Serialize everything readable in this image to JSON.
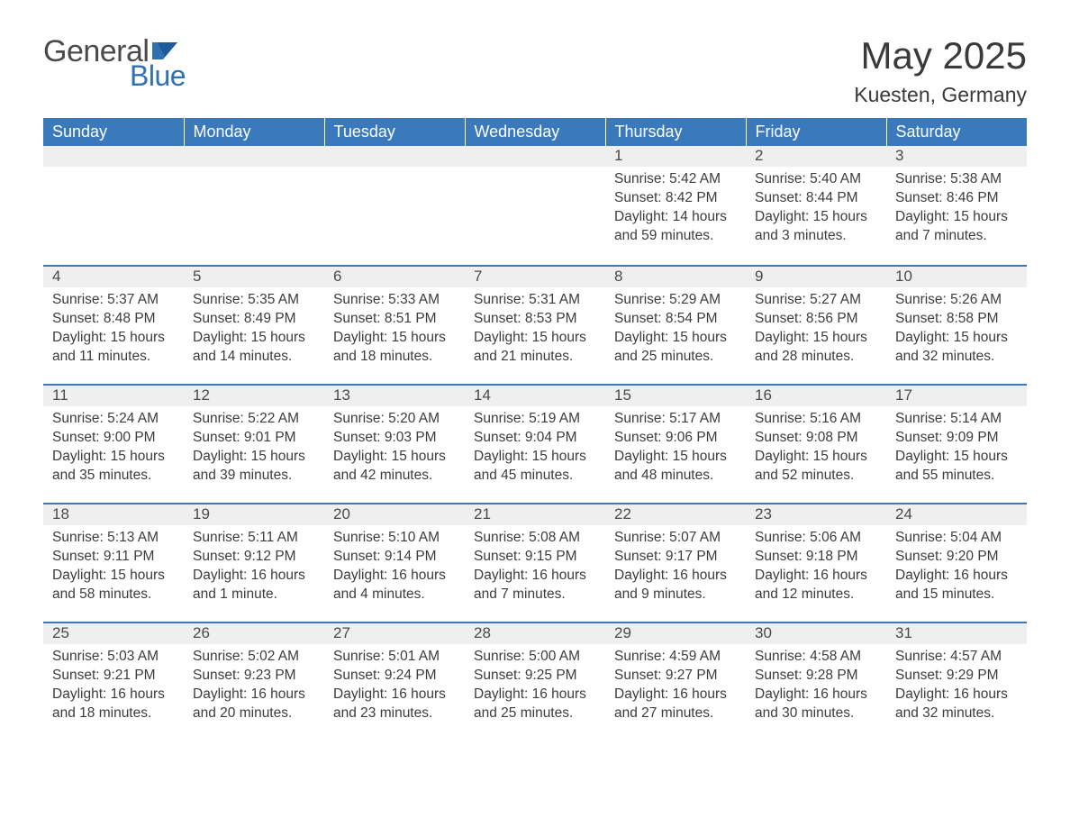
{
  "logo": {
    "general": "General",
    "blue": "Blue"
  },
  "title": "May 2025",
  "location": "Kuesten, Germany",
  "colors": {
    "header_bg": "#3a79bb",
    "header_text": "#ffffff",
    "numbar_bg": "#efefef",
    "rule": "#3a79bb",
    "body_text": "#3c3c3c",
    "logo_blue": "#2f6fb2",
    "page_bg": "#ffffff"
  },
  "day_headers": [
    "Sunday",
    "Monday",
    "Tuesday",
    "Wednesday",
    "Thursday",
    "Friday",
    "Saturday"
  ],
  "weeks": [
    [
      {
        "n": "",
        "sunrise": "",
        "sunset": "",
        "daylight": ""
      },
      {
        "n": "",
        "sunrise": "",
        "sunset": "",
        "daylight": ""
      },
      {
        "n": "",
        "sunrise": "",
        "sunset": "",
        "daylight": ""
      },
      {
        "n": "",
        "sunrise": "",
        "sunset": "",
        "daylight": ""
      },
      {
        "n": "1",
        "sunrise": "Sunrise: 5:42 AM",
        "sunset": "Sunset: 8:42 PM",
        "daylight": "Daylight: 14 hours and 59 minutes."
      },
      {
        "n": "2",
        "sunrise": "Sunrise: 5:40 AM",
        "sunset": "Sunset: 8:44 PM",
        "daylight": "Daylight: 15 hours and 3 minutes."
      },
      {
        "n": "3",
        "sunrise": "Sunrise: 5:38 AM",
        "sunset": "Sunset: 8:46 PM",
        "daylight": "Daylight: 15 hours and 7 minutes."
      }
    ],
    [
      {
        "n": "4",
        "sunrise": "Sunrise: 5:37 AM",
        "sunset": "Sunset: 8:48 PM",
        "daylight": "Daylight: 15 hours and 11 minutes."
      },
      {
        "n": "5",
        "sunrise": "Sunrise: 5:35 AM",
        "sunset": "Sunset: 8:49 PM",
        "daylight": "Daylight: 15 hours and 14 minutes."
      },
      {
        "n": "6",
        "sunrise": "Sunrise: 5:33 AM",
        "sunset": "Sunset: 8:51 PM",
        "daylight": "Daylight: 15 hours and 18 minutes."
      },
      {
        "n": "7",
        "sunrise": "Sunrise: 5:31 AM",
        "sunset": "Sunset: 8:53 PM",
        "daylight": "Daylight: 15 hours and 21 minutes."
      },
      {
        "n": "8",
        "sunrise": "Sunrise: 5:29 AM",
        "sunset": "Sunset: 8:54 PM",
        "daylight": "Daylight: 15 hours and 25 minutes."
      },
      {
        "n": "9",
        "sunrise": "Sunrise: 5:27 AM",
        "sunset": "Sunset: 8:56 PM",
        "daylight": "Daylight: 15 hours and 28 minutes."
      },
      {
        "n": "10",
        "sunrise": "Sunrise: 5:26 AM",
        "sunset": "Sunset: 8:58 PM",
        "daylight": "Daylight: 15 hours and 32 minutes."
      }
    ],
    [
      {
        "n": "11",
        "sunrise": "Sunrise: 5:24 AM",
        "sunset": "Sunset: 9:00 PM",
        "daylight": "Daylight: 15 hours and 35 minutes."
      },
      {
        "n": "12",
        "sunrise": "Sunrise: 5:22 AM",
        "sunset": "Sunset: 9:01 PM",
        "daylight": "Daylight: 15 hours and 39 minutes."
      },
      {
        "n": "13",
        "sunrise": "Sunrise: 5:20 AM",
        "sunset": "Sunset: 9:03 PM",
        "daylight": "Daylight: 15 hours and 42 minutes."
      },
      {
        "n": "14",
        "sunrise": "Sunrise: 5:19 AM",
        "sunset": "Sunset: 9:04 PM",
        "daylight": "Daylight: 15 hours and 45 minutes."
      },
      {
        "n": "15",
        "sunrise": "Sunrise: 5:17 AM",
        "sunset": "Sunset: 9:06 PM",
        "daylight": "Daylight: 15 hours and 48 minutes."
      },
      {
        "n": "16",
        "sunrise": "Sunrise: 5:16 AM",
        "sunset": "Sunset: 9:08 PM",
        "daylight": "Daylight: 15 hours and 52 minutes."
      },
      {
        "n": "17",
        "sunrise": "Sunrise: 5:14 AM",
        "sunset": "Sunset: 9:09 PM",
        "daylight": "Daylight: 15 hours and 55 minutes."
      }
    ],
    [
      {
        "n": "18",
        "sunrise": "Sunrise: 5:13 AM",
        "sunset": "Sunset: 9:11 PM",
        "daylight": "Daylight: 15 hours and 58 minutes."
      },
      {
        "n": "19",
        "sunrise": "Sunrise: 5:11 AM",
        "sunset": "Sunset: 9:12 PM",
        "daylight": "Daylight: 16 hours and 1 minute."
      },
      {
        "n": "20",
        "sunrise": "Sunrise: 5:10 AM",
        "sunset": "Sunset: 9:14 PM",
        "daylight": "Daylight: 16 hours and 4 minutes."
      },
      {
        "n": "21",
        "sunrise": "Sunrise: 5:08 AM",
        "sunset": "Sunset: 9:15 PM",
        "daylight": "Daylight: 16 hours and 7 minutes."
      },
      {
        "n": "22",
        "sunrise": "Sunrise: 5:07 AM",
        "sunset": "Sunset: 9:17 PM",
        "daylight": "Daylight: 16 hours and 9 minutes."
      },
      {
        "n": "23",
        "sunrise": "Sunrise: 5:06 AM",
        "sunset": "Sunset: 9:18 PM",
        "daylight": "Daylight: 16 hours and 12 minutes."
      },
      {
        "n": "24",
        "sunrise": "Sunrise: 5:04 AM",
        "sunset": "Sunset: 9:20 PM",
        "daylight": "Daylight: 16 hours and 15 minutes."
      }
    ],
    [
      {
        "n": "25",
        "sunrise": "Sunrise: 5:03 AM",
        "sunset": "Sunset: 9:21 PM",
        "daylight": "Daylight: 16 hours and 18 minutes."
      },
      {
        "n": "26",
        "sunrise": "Sunrise: 5:02 AM",
        "sunset": "Sunset: 9:23 PM",
        "daylight": "Daylight: 16 hours and 20 minutes."
      },
      {
        "n": "27",
        "sunrise": "Sunrise: 5:01 AM",
        "sunset": "Sunset: 9:24 PM",
        "daylight": "Daylight: 16 hours and 23 minutes."
      },
      {
        "n": "28",
        "sunrise": "Sunrise: 5:00 AM",
        "sunset": "Sunset: 9:25 PM",
        "daylight": "Daylight: 16 hours and 25 minutes."
      },
      {
        "n": "29",
        "sunrise": "Sunrise: 4:59 AM",
        "sunset": "Sunset: 9:27 PM",
        "daylight": "Daylight: 16 hours and 27 minutes."
      },
      {
        "n": "30",
        "sunrise": "Sunrise: 4:58 AM",
        "sunset": "Sunset: 9:28 PM",
        "daylight": "Daylight: 16 hours and 30 minutes."
      },
      {
        "n": "31",
        "sunrise": "Sunrise: 4:57 AM",
        "sunset": "Sunset: 9:29 PM",
        "daylight": "Daylight: 16 hours and 32 minutes."
      }
    ]
  ]
}
